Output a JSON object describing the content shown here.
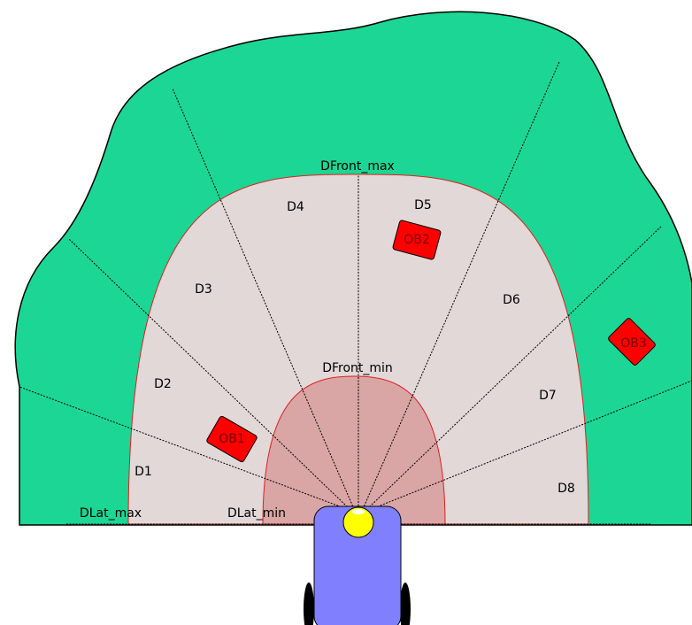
{
  "regions": {
    "front_max": "DFront_max",
    "front_min": "DFront_min",
    "lat_max": "DLat_max",
    "lat_min": "DLat_min"
  },
  "sectors": [
    "D1",
    "D2",
    "D3",
    "D4",
    "D5",
    "D6",
    "D7",
    "D8"
  ],
  "obstacles": [
    "OB1",
    "OB2",
    "OB3"
  ]
}
